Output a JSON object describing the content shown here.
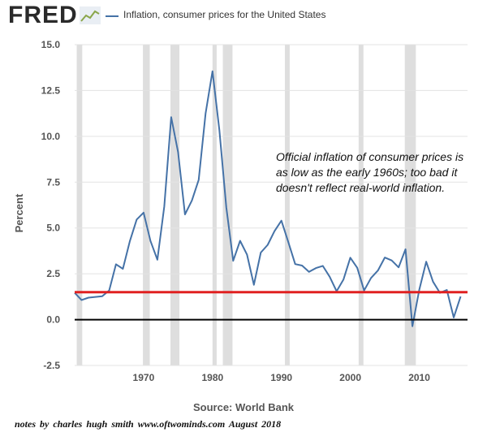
{
  "header": {
    "logo": "FRED",
    "legend_label": "Inflation, consumer prices for the United States"
  },
  "annotation": "Official inflation of consumer prices is as low as the early 1960s; too bad it doesn't reflect real-world inflation.",
  "source": "Source: World Bank",
  "footnote": "notes by charles hugh smith   www.oftwominds.com   August 2018",
  "chart_data": {
    "type": "line",
    "title": "Inflation, consumer prices for the United States",
    "ylabel": "Percent",
    "xlabel": "",
    "ylim": [
      -2.5,
      15.0
    ],
    "xlim": [
      1960,
      2017
    ],
    "y_ticks": [
      "-2.5",
      "0.0",
      "2.5",
      "5.0",
      "7.5",
      "10.0",
      "12.5",
      "15.0"
    ],
    "x_ticks": [
      "1970",
      "1980",
      "1990",
      "2000",
      "2010"
    ],
    "grid": "horizontal",
    "recessions": [
      [
        1960.3,
        1961.1
      ],
      [
        1969.9,
        1970.9
      ],
      [
        1973.9,
        1975.2
      ],
      [
        1980.0,
        1980.6
      ],
      [
        1981.5,
        1982.9
      ],
      [
        1990.5,
        1991.2
      ],
      [
        2001.2,
        2001.9
      ],
      [
        2007.9,
        2009.5
      ]
    ],
    "reference_lines": [
      {
        "value": 1.5,
        "color": "#e02020"
      },
      {
        "value": 0.0,
        "color": "#000000"
      }
    ],
    "series": [
      {
        "color": "#4572a7",
        "x": [
          1960,
          1961,
          1962,
          1963,
          1964,
          1965,
          1966,
          1967,
          1968,
          1969,
          1970,
          1971,
          1972,
          1973,
          1974,
          1975,
          1976,
          1977,
          1978,
          1979,
          1980,
          1981,
          1982,
          1983,
          1984,
          1985,
          1986,
          1987,
          1988,
          1989,
          1990,
          1991,
          1992,
          1993,
          1994,
          1995,
          1996,
          1997,
          1998,
          1999,
          2000,
          2001,
          2002,
          2003,
          2004,
          2005,
          2006,
          2007,
          2008,
          2009,
          2010,
          2011,
          2012,
          2013,
          2014,
          2015,
          2016
        ],
        "values": [
          1.46,
          1.07,
          1.2,
          1.24,
          1.28,
          1.59,
          3.02,
          2.77,
          4.27,
          5.46,
          5.84,
          4.29,
          3.27,
          6.18,
          11.05,
          9.14,
          5.74,
          6.5,
          7.63,
          11.25,
          13.55,
          10.33,
          6.13,
          3.21,
          4.3,
          3.55,
          1.9,
          3.66,
          4.08,
          4.83,
          5.4,
          4.23,
          3.03,
          2.95,
          2.61,
          2.81,
          2.93,
          2.34,
          1.55,
          2.19,
          3.38,
          2.83,
          1.59,
          2.27,
          2.68,
          3.39,
          3.23,
          2.85,
          3.84,
          -0.36,
          1.64,
          3.16,
          2.07,
          1.46,
          1.62,
          0.12,
          1.26
        ]
      }
    ]
  }
}
